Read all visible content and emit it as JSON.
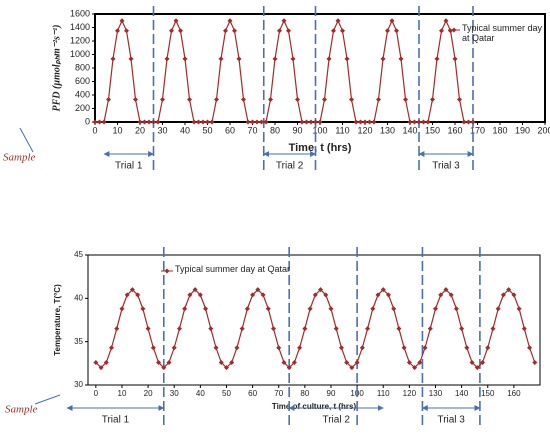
{
  "chart_data": [
    {
      "type": "line",
      "xlabel": "Time, t (hrs)",
      "ylabel": "PFD (µmolₚₕm⁻²s⁻¹)",
      "xlim": [
        0,
        200
      ],
      "ylim": [
        0,
        1600
      ],
      "xticks": [
        0,
        10,
        20,
        30,
        40,
        50,
        60,
        70,
        80,
        90,
        100,
        110,
        120,
        130,
        140,
        150,
        160,
        170,
        180,
        190,
        200
      ],
      "yticks": [
        0,
        200,
        400,
        600,
        800,
        1000,
        1200,
        1400,
        1600
      ],
      "x": [
        0,
        2,
        4,
        6,
        8,
        10,
        12,
        14,
        16,
        18,
        20,
        22,
        24,
        26,
        28,
        30,
        32,
        34,
        36,
        38,
        40,
        42,
        44,
        46,
        48,
        50,
        52,
        54,
        56,
        58,
        60,
        62,
        64,
        66,
        68,
        70,
        72,
        74,
        76,
        78,
        80,
        82,
        84,
        86,
        88,
        90,
        92,
        94,
        96,
        98,
        100,
        102,
        104,
        106,
        108,
        110,
        112,
        114,
        116,
        118,
        120,
        122,
        124,
        126,
        128,
        130,
        132,
        134,
        136,
        138,
        140,
        142,
        144,
        146,
        148,
        150,
        152,
        154,
        156,
        158,
        160,
        162,
        164,
        166,
        168
      ],
      "series": [
        {
          "name": "Typical summer day at Qatar",
          "color": "#a52a2a",
          "values": [
            0,
            0,
            0,
            334,
            935,
            1351,
            1500,
            1351,
            935,
            334,
            0,
            0,
            0,
            0,
            0,
            334,
            935,
            1351,
            1500,
            1351,
            935,
            334,
            0,
            0,
            0,
            0,
            0,
            334,
            935,
            1351,
            1500,
            1351,
            935,
            334,
            0,
            0,
            0,
            0,
            0,
            334,
            935,
            1351,
            1500,
            1351,
            935,
            334,
            0,
            0,
            0,
            0,
            0,
            334,
            935,
            1351,
            1500,
            1351,
            935,
            334,
            0,
            0,
            0,
            0,
            0,
            334,
            935,
            1351,
            1500,
            1351,
            935,
            334,
            0,
            0,
            0,
            0,
            0,
            334,
            935,
            1351,
            1500,
            1351,
            935,
            334,
            0,
            0,
            0
          ]
        }
      ],
      "vlines": [
        26,
        75,
        98,
        144,
        168
      ],
      "trials": [
        {
          "label": "Trial 1",
          "x": [
            4,
            26
          ]
        },
        {
          "label": "Trial 2",
          "x": [
            75,
            98
          ]
        },
        {
          "label": "Trial 3",
          "x": [
            144,
            168
          ]
        }
      ],
      "annotation": "Sample"
    },
    {
      "type": "line",
      "xlabel": "Time of culture, t (hrs)",
      "ylabel": "Temperature, T(°C)",
      "xlim": [
        -3,
        170
      ],
      "ylim": [
        30,
        45
      ],
      "xticks": [
        0,
        10,
        20,
        30,
        40,
        50,
        60,
        70,
        80,
        90,
        100,
        110,
        120,
        130,
        140,
        150,
        160
      ],
      "yticks": [
        30,
        35,
        40,
        45
      ],
      "x": [
        0,
        2,
        4,
        6,
        8,
        10,
        12,
        14,
        16,
        18,
        20,
        22,
        24,
        26,
        28,
        30,
        32,
        34,
        36,
        38,
        40,
        42,
        44,
        46,
        48,
        50,
        52,
        54,
        56,
        58,
        60,
        62,
        64,
        66,
        68,
        70,
        72,
        74,
        76,
        78,
        80,
        82,
        84,
        86,
        88,
        90,
        92,
        94,
        96,
        98,
        100,
        102,
        104,
        106,
        108,
        110,
        112,
        114,
        116,
        118,
        120,
        122,
        124,
        126,
        128,
        130,
        132,
        134,
        136,
        138,
        140,
        142,
        144,
        146,
        148,
        150,
        152,
        154,
        156,
        158,
        160,
        162,
        164,
        166,
        168
      ],
      "series": [
        {
          "name": "Typical summer day at Qatar",
          "color": "#a52a2a",
          "values": [
            32.6,
            32.0,
            32.6,
            34.3,
            36.5,
            38.8,
            40.4,
            41.0,
            40.4,
            38.8,
            36.5,
            34.3,
            32.6,
            32.0,
            32.6,
            34.3,
            36.5,
            38.8,
            40.4,
            41.0,
            40.4,
            38.8,
            36.5,
            34.3,
            32.6,
            32.0,
            32.6,
            34.3,
            36.5,
            38.8,
            40.4,
            41.0,
            40.4,
            38.8,
            36.5,
            34.3,
            32.6,
            32.0,
            32.6,
            34.3,
            36.5,
            38.8,
            40.4,
            41.0,
            40.4,
            38.8,
            36.5,
            34.3,
            32.6,
            32.0,
            32.6,
            34.3,
            36.5,
            38.8,
            40.4,
            41.0,
            40.4,
            38.8,
            36.5,
            34.3,
            32.6,
            32.0,
            32.6,
            34.3,
            36.5,
            38.8,
            40.4,
            41.0,
            40.4,
            38.8,
            36.5,
            34.3,
            32.6,
            32.0,
            32.6,
            34.3,
            36.5,
            38.8,
            40.4,
            41.0,
            40.4,
            38.8,
            36.5,
            34.3,
            32.6
          ]
        }
      ],
      "vlines": [
        26,
        74,
        100,
        125,
        147
      ],
      "trials": [
        {
          "label": "Trial 1",
          "x": [
            -11,
            26
          ]
        },
        {
          "label": "Trial 2",
          "x": [
            74,
            110
          ]
        },
        {
          "label": "Trial 3",
          "x": [
            125,
            147
          ]
        }
      ],
      "annotation": "Sample"
    }
  ]
}
